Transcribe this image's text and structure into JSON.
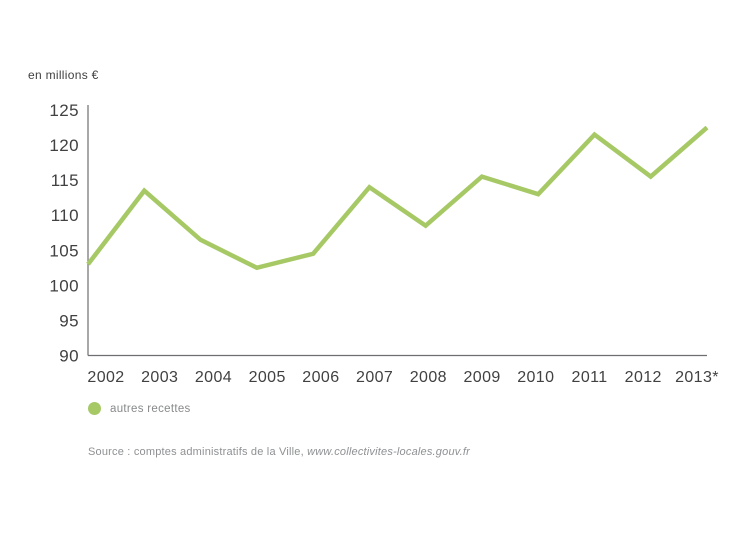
{
  "chart_data": {
    "type": "line",
    "title": "",
    "unit_label": "en millions €",
    "categories": [
      "2002",
      "2003",
      "2004",
      "2005",
      "2006",
      "2007",
      "2008",
      "2009",
      "2010",
      "2011",
      "2012",
      "2013*"
    ],
    "series": [
      {
        "name": "autres recettes",
        "values": [
          103,
          113.5,
          106.5,
          102.5,
          104.5,
          114,
          108.5,
          115.5,
          113,
          121.5,
          115.5,
          122.5
        ]
      }
    ],
    "xlabel": "",
    "ylabel": "en millions €",
    "ylim": [
      90,
      125
    ],
    "yticks": [
      90,
      95,
      100,
      105,
      110,
      115,
      120,
      125
    ],
    "grid": false,
    "legend_position": "bottom-left",
    "line_color": "#a6c966",
    "axis_color": "#6d6e71",
    "tick_color": "#414042"
  },
  "source": {
    "prefix": "Source : comptes administratifs de la Ville, ",
    "url": "www.collectivites-locales.gouv.fr"
  }
}
